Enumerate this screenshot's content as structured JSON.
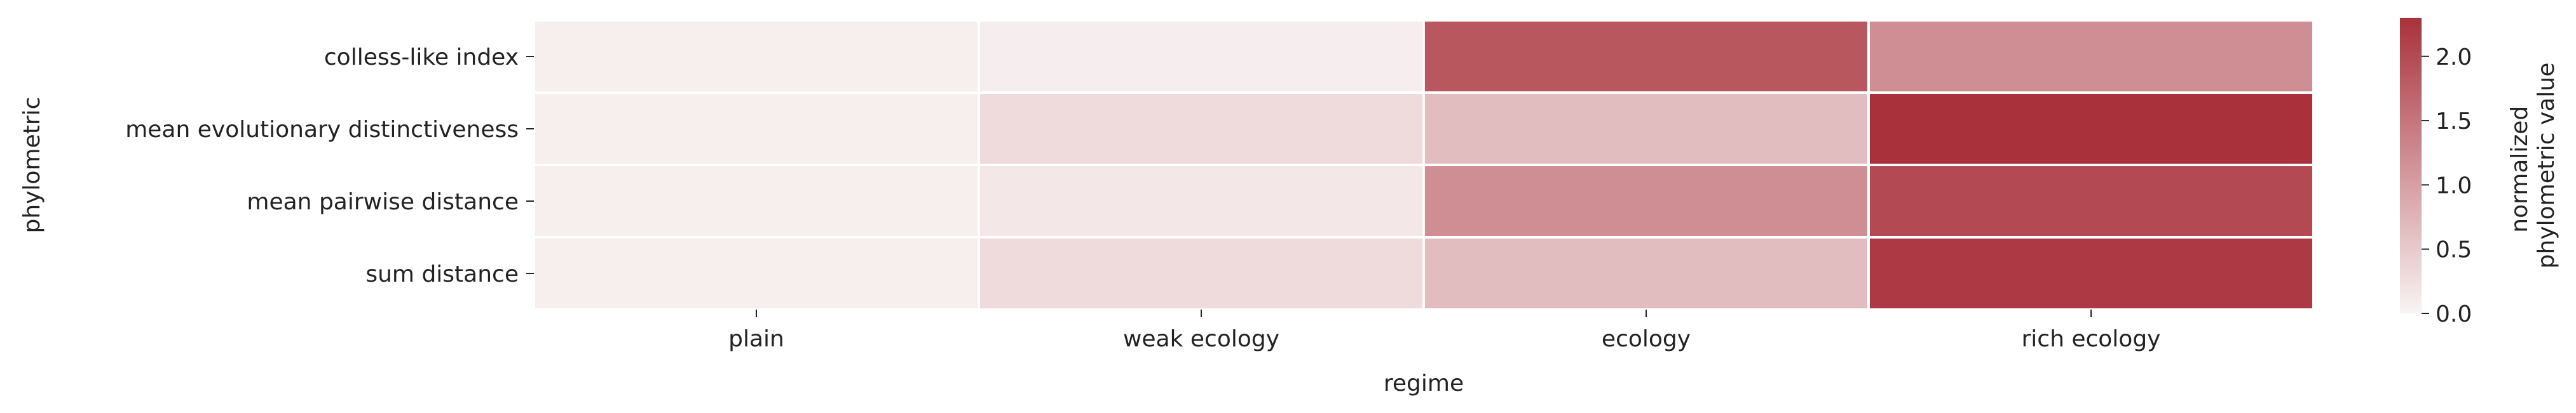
{
  "chart_data": {
    "type": "heatmap",
    "xlabel": "regime",
    "ylabel": "phylometric",
    "categories_x": [
      "plain",
      "weak ecology",
      "ecology",
      "rich ecology"
    ],
    "categories_y": [
      "colless-like index",
      "mean evolutionary distinctiveness",
      "mean pairwise distance",
      "sum distance"
    ],
    "values": [
      [
        0.07,
        0.08,
        1.85,
        1.2
      ],
      [
        0.07,
        0.3,
        0.65,
        2.3
      ],
      [
        0.07,
        0.15,
        1.2,
        2.0
      ],
      [
        0.07,
        0.3,
        0.65,
        2.2
      ]
    ],
    "colorbar": {
      "label_line1": "normalized",
      "label_line2": "phylometric value",
      "range": [
        0,
        2.3
      ],
      "ticks": [
        0.0,
        0.5,
        1.0,
        1.5,
        2.0
      ],
      "tick_labels": [
        "0.0",
        "0.5",
        "1.0",
        "1.5",
        "2.0"
      ],
      "color_low": "#f9f4f4",
      "color_high": "#a9313b"
    }
  }
}
